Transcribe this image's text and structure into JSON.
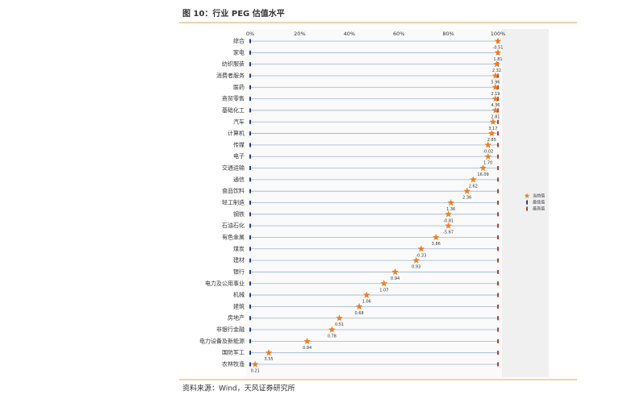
{
  "chart_data": {
    "type": "dot",
    "title": "图 10：行业 PEG 估值水平",
    "source": "资料来源：Wind，天风证券研究所",
    "categories": [
      "综合",
      "家电",
      "纺织服装",
      "消费者服务",
      "医药",
      "商贸零售",
      "基础化工",
      "汽车",
      "计算机",
      "传媒",
      "电子",
      "交通运输",
      "通信",
      "食品饮料",
      "轻工制造",
      "钢铁",
      "石油石化",
      "有色金属",
      "煤炭",
      "建材",
      "银行",
      "电力及公用事业",
      "机械",
      "建筑",
      "房地产",
      "非银行金融",
      "电力设备及新能源",
      "国防军工",
      "农林牧渔"
    ],
    "series": [
      {
        "name": "当前值",
        "color": "#f07c1e",
        "marker": "star",
        "values": [
          100,
          100,
          99.5,
          99,
          99,
          99,
          99,
          98,
          97.5,
          96,
          96,
          94,
          90,
          87.5,
          81,
          80,
          80,
          75,
          69,
          67,
          58.5,
          54,
          47,
          44,
          36,
          33,
          23,
          7.5,
          2
        ]
      },
      {
        "name": "最低值",
        "color": "#1f3f9a",
        "marker": "bar",
        "values": [
          0,
          0,
          0,
          0,
          0,
          0,
          0,
          0,
          0,
          0,
          0,
          0,
          0,
          0,
          0,
          0,
          0,
          0,
          0,
          0,
          0,
          0,
          0,
          0,
          0,
          0,
          0,
          0,
          0
        ]
      },
      {
        "name": "最高值",
        "color": "#c0392b",
        "marker": "bar",
        "values": [
          100,
          100,
          100,
          100,
          100,
          100,
          100,
          100,
          100,
          100,
          100,
          100,
          100,
          100,
          100,
          100,
          100,
          100,
          100,
          100,
          100,
          100,
          100,
          100,
          100,
          100,
          100,
          100,
          100
        ]
      }
    ],
    "peg_labels": [
      "-0.51",
      "1.81",
      "2.32",
      "5.96",
      "2.19",
      "4.36",
      "2.81",
      "3.17",
      "2.85",
      "-0.02",
      "1.70",
      "16.09",
      "2.62",
      "2.36",
      "1.36",
      "-0.81",
      "-5.67",
      "3.86",
      "-0.33",
      "0.93",
      "0.94",
      "1.07",
      "1.06",
      "0.68",
      "0.51",
      "0.78",
      "0.94",
      "3.55",
      "0.21"
    ],
    "xlim": [
      0,
      100
    ],
    "xticks": [
      {
        "value": 0,
        "label": "0%"
      },
      {
        "value": 20,
        "label": "20%"
      },
      {
        "value": 40,
        "label": "40%"
      },
      {
        "value": 60,
        "label": "60%"
      },
      {
        "value": 80,
        "label": "80%"
      },
      {
        "value": 100,
        "label": "100%"
      }
    ]
  }
}
